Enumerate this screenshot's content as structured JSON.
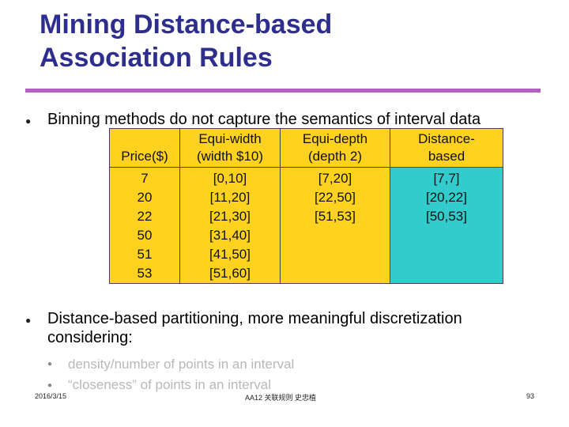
{
  "title": {
    "line1": "Mining Distance-based",
    "line2": "Association Rules"
  },
  "bullets": [
    {
      "text": "Binning methods do not capture the semantics of interval data"
    },
    {
      "text_line1": "Distance-based partitioning, more meaningful discretization",
      "text_line2": "considering:",
      "sub_items": [
        "density/number of points in an interval",
        "“closeness” of points in an interval"
      ]
    }
  ],
  "table": {
    "headers": [
      {
        "line1": "",
        "line2": "Price($)"
      },
      {
        "line1": "Equi-width",
        "line2": "(width $10)"
      },
      {
        "line1": "Equi-depth",
        "line2": "(depth 2)"
      },
      {
        "line1": "Distance-",
        "line2": "based"
      }
    ],
    "columns": [
      [
        "7",
        "20",
        "22",
        "50",
        "51",
        "53"
      ],
      [
        "[0,10]",
        "[11,20]",
        "[21,30]",
        "[31,40]",
        "[41,50]",
        "[51,60]"
      ],
      [
        "[7,20]",
        "[22,50]",
        "[51,53]"
      ],
      [
        "[7,7]",
        "[20,22]",
        "[50,53]"
      ]
    ],
    "colors": {
      "header": "#ffd21f",
      "distance_col": "#33cccc"
    }
  },
  "footer": {
    "date": "2016/3/15",
    "course": "AA12 关联规则 史忠植",
    "page": "93"
  },
  "colors": {
    "title": "#2e2e8f",
    "rule": "#b45fc4"
  }
}
